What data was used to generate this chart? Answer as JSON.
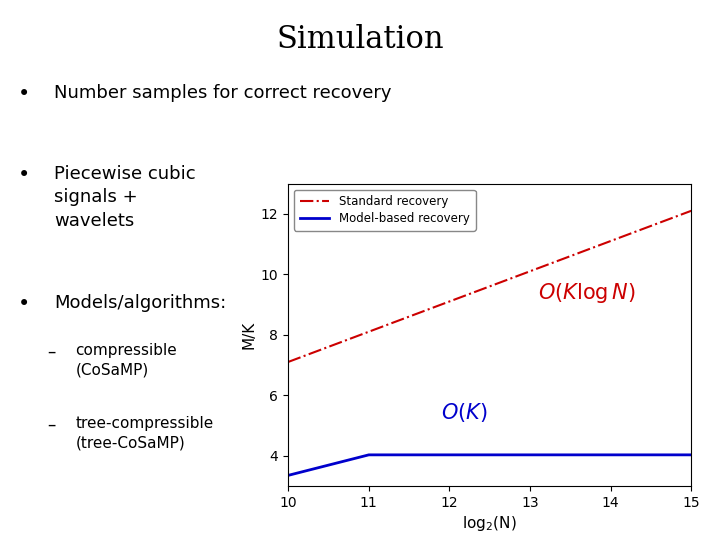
{
  "title": "Simulation",
  "bullet1": "Number samples for correct recovery",
  "bullet2": "Piecewise cubic\nsignals +\nwavelets",
  "bullet3": "Models/algorithms:",
  "sub1": "compressible\n(CoSaMP)",
  "sub2": "tree-compressible\n(tree-CoSaMP)",
  "xlabel": "log$_2$(N)",
  "ylabel": "M/K",
  "xlim": [
    10,
    15
  ],
  "ylim": [
    3.0,
    13.0
  ],
  "xticks": [
    10,
    11,
    12,
    13,
    14,
    15
  ],
  "yticks": [
    4,
    6,
    8,
    10,
    12
  ],
  "legend1": "Standard recovery",
  "legend2": "Model-based recovery",
  "red_color": "#cc0000",
  "blue_color": "#0000cc",
  "annotation_red": "$O(K\\log N)$",
  "annotation_blue": "$O(K)$",
  "bg_color": "#ffffff",
  "text_color": "#000000",
  "title_fontsize": 22,
  "body_fontsize": 13,
  "sub_fontsize": 11
}
